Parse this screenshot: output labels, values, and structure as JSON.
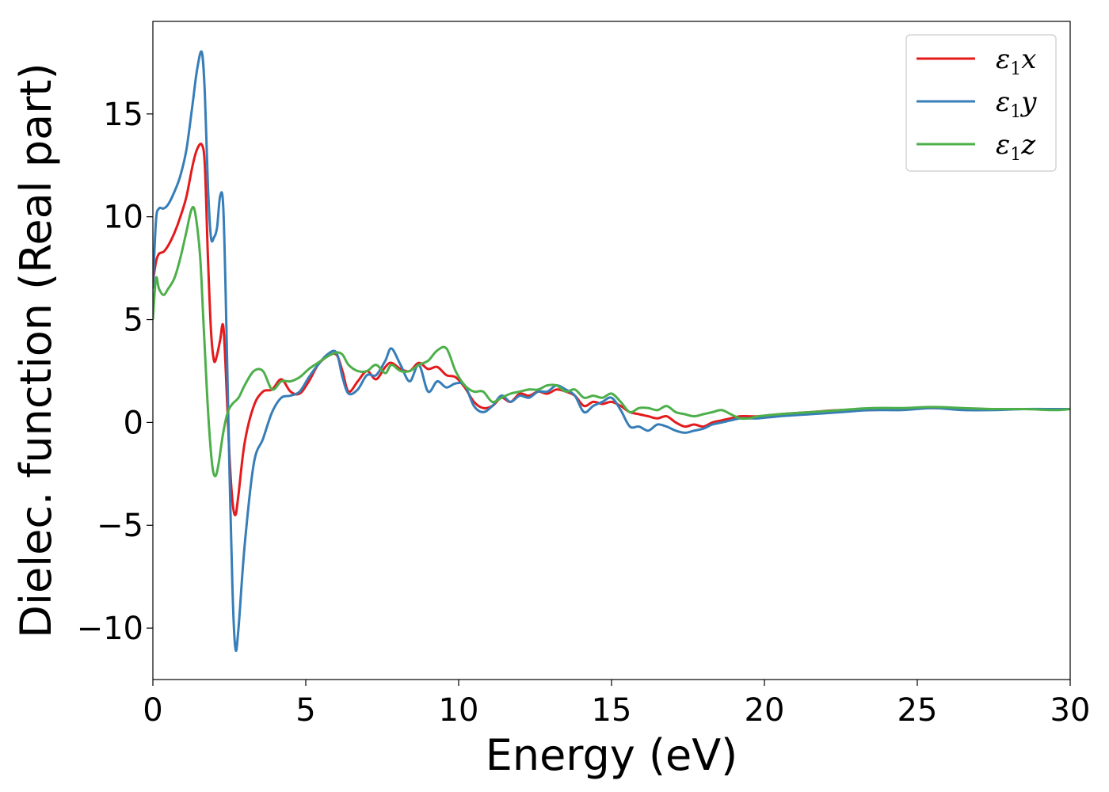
{
  "chart_data": {
    "type": "line",
    "title": "",
    "xlabel": "Energy (eV)",
    "ylabel": "Dielec. function (Real part)",
    "xlim": [
      0,
      30
    ],
    "ylim": [
      -12.5,
      19.5
    ],
    "xticks": [
      0,
      5,
      10,
      15,
      20,
      25,
      30
    ],
    "yticks": [
      -10,
      -5,
      0,
      5,
      10,
      15
    ],
    "xtick_labels": [
      "0",
      "5",
      "10",
      "15",
      "20",
      "25",
      "30"
    ],
    "ytick_labels": [
      "−10",
      "−5",
      "0",
      "5",
      "10",
      "15"
    ],
    "grid": false,
    "legend_position": "top-right",
    "series": [
      {
        "name": "ε1x",
        "label_main": "ε",
        "label_sub": "1",
        "label_var": "x",
        "color": "#e41a1c",
        "x": [
          0,
          0.1,
          0.2,
          0.35,
          0.5,
          0.7,
          0.9,
          1.1,
          1.3,
          1.45,
          1.6,
          1.7,
          1.8,
          1.9,
          2.0,
          2.1,
          2.2,
          2.3,
          2.4,
          2.5,
          2.6,
          2.7,
          2.8,
          3.0,
          3.3,
          3.6,
          3.9,
          4.2,
          4.5,
          4.8,
          5.1,
          5.4,
          5.7,
          6.0,
          6.2,
          6.4,
          6.7,
          7.0,
          7.3,
          7.6,
          7.8,
          8.1,
          8.4,
          8.7,
          9.0,
          9.3,
          9.6,
          9.9,
          10.2,
          10.5,
          10.8,
          11.1,
          11.4,
          11.7,
          12.0,
          12.3,
          12.6,
          12.9,
          13.2,
          13.5,
          13.8,
          14.1,
          14.4,
          14.7,
          15.0,
          15.3,
          15.6,
          15.9,
          16.2,
          16.5,
          16.8,
          17.1,
          17.4,
          17.7,
          18.0,
          18.3,
          18.6,
          18.9,
          19.2,
          19.5,
          19.8,
          20.5,
          21.5,
          22.5,
          23.5,
          24.5,
          25.5,
          26.5,
          27.5,
          28.5,
          29.5,
          30
        ],
        "y": [
          6.8,
          7.8,
          8.2,
          8.3,
          8.6,
          9.2,
          10.0,
          11.0,
          12.5,
          13.3,
          13.5,
          12.5,
          8.0,
          4.5,
          3.0,
          3.3,
          4.0,
          4.7,
          2.0,
          -1.5,
          -3.8,
          -4.5,
          -3.5,
          -1.0,
          0.8,
          1.5,
          1.6,
          2.1,
          1.5,
          1.4,
          2.0,
          2.8,
          3.2,
          3.3,
          2.5,
          1.5,
          2.0,
          2.5,
          2.1,
          2.7,
          2.9,
          2.6,
          2.5,
          2.9,
          2.6,
          2.7,
          2.3,
          2.2,
          1.7,
          1.0,
          0.7,
          0.8,
          1.2,
          1.0,
          1.4,
          1.3,
          1.5,
          1.4,
          1.6,
          1.5,
          1.3,
          0.8,
          1.0,
          0.9,
          1.0,
          0.8,
          0.5,
          0.4,
          0.3,
          0.2,
          0.3,
          0.0,
          -0.2,
          -0.1,
          -0.2,
          0.0,
          0.1,
          0.2,
          0.3,
          0.3,
          0.3,
          0.4,
          0.5,
          0.6,
          0.6,
          0.65,
          0.7,
          0.65,
          0.65,
          0.65,
          0.65,
          0.65
        ]
      },
      {
        "name": "ε1y",
        "label_main": "ε",
        "label_sub": "1",
        "label_var": "y",
        "color": "#377eb8",
        "x": [
          0,
          0.1,
          0.2,
          0.35,
          0.5,
          0.7,
          0.9,
          1.1,
          1.3,
          1.45,
          1.6,
          1.7,
          1.8,
          1.9,
          2.0,
          2.1,
          2.2,
          2.3,
          2.4,
          2.5,
          2.6,
          2.7,
          2.8,
          3.0,
          3.3,
          3.6,
          3.9,
          4.2,
          4.5,
          4.8,
          5.1,
          5.4,
          5.7,
          6.0,
          6.2,
          6.4,
          6.7,
          7.0,
          7.3,
          7.6,
          7.8,
          8.1,
          8.4,
          8.7,
          9.0,
          9.3,
          9.6,
          9.9,
          10.2,
          10.5,
          10.8,
          11.1,
          11.4,
          11.7,
          12.0,
          12.3,
          12.6,
          12.9,
          13.2,
          13.5,
          13.8,
          14.1,
          14.4,
          14.7,
          15.0,
          15.3,
          15.6,
          15.9,
          16.2,
          16.5,
          16.8,
          17.1,
          17.4,
          17.7,
          18.0,
          18.3,
          18.6,
          18.9,
          19.2,
          19.5,
          19.8,
          20.5,
          21.5,
          22.5,
          23.5,
          24.5,
          25.5,
          26.5,
          27.5,
          28.5,
          29.5,
          30
        ],
        "y": [
          6.5,
          9.8,
          10.4,
          10.4,
          10.6,
          11.2,
          12.0,
          13.3,
          15.5,
          17.2,
          18.0,
          16.0,
          11.5,
          9.0,
          9.0,
          9.5,
          11.0,
          10.5,
          5.0,
          -2.0,
          -8.0,
          -11.0,
          -10.0,
          -6.0,
          -2.0,
          -0.8,
          0.5,
          1.2,
          1.3,
          1.5,
          2.2,
          2.8,
          3.3,
          3.4,
          2.2,
          1.4,
          1.6,
          2.3,
          2.3,
          3.0,
          3.6,
          2.8,
          2.0,
          2.8,
          1.5,
          2.0,
          1.7,
          1.9,
          1.8,
          0.8,
          0.5,
          0.8,
          1.3,
          1.0,
          1.3,
          1.2,
          1.5,
          1.5,
          1.8,
          1.6,
          1.3,
          0.5,
          0.8,
          1.0,
          1.2,
          0.6,
          -0.2,
          -0.2,
          -0.4,
          -0.1,
          -0.2,
          -0.4,
          -0.5,
          -0.4,
          -0.3,
          -0.1,
          0.0,
          0.1,
          0.2,
          0.2,
          0.2,
          0.3,
          0.4,
          0.5,
          0.6,
          0.6,
          0.7,
          0.6,
          0.6,
          0.65,
          0.65,
          0.65
        ]
      },
      {
        "name": "ε1z",
        "label_main": "ε",
        "label_sub": "1",
        "label_var": "z",
        "color": "#4daf4a",
        "x": [
          0,
          0.1,
          0.2,
          0.35,
          0.5,
          0.7,
          0.9,
          1.1,
          1.25,
          1.35,
          1.45,
          1.55,
          1.65,
          1.75,
          1.85,
          1.95,
          2.05,
          2.15,
          2.3,
          2.45,
          2.6,
          2.8,
          3.0,
          3.3,
          3.6,
          3.9,
          4.2,
          4.5,
          4.8,
          5.1,
          5.4,
          5.7,
          6.0,
          6.2,
          6.4,
          6.7,
          7.0,
          7.3,
          7.6,
          7.8,
          8.1,
          8.4,
          8.7,
          9.0,
          9.3,
          9.6,
          9.9,
          10.2,
          10.5,
          10.8,
          11.1,
          11.4,
          11.7,
          12.0,
          12.3,
          12.6,
          12.9,
          13.2,
          13.5,
          13.8,
          14.1,
          14.4,
          14.7,
          15.0,
          15.3,
          15.6,
          15.9,
          16.2,
          16.5,
          16.8,
          17.1,
          17.4,
          17.7,
          18.0,
          18.3,
          18.6,
          18.9,
          19.2,
          19.5,
          19.8,
          20.5,
          21.5,
          22.5,
          23.5,
          24.5,
          25.5,
          26.5,
          27.5,
          28.5,
          29.5,
          30
        ],
        "y": [
          5.0,
          7.0,
          6.5,
          6.2,
          6.5,
          7.0,
          8.0,
          9.3,
          10.3,
          10.4,
          9.5,
          8.0,
          5.0,
          2.0,
          -0.5,
          -2.2,
          -2.6,
          -2.0,
          -0.5,
          0.5,
          0.9,
          1.2,
          1.8,
          2.5,
          2.5,
          1.6,
          2.0,
          2.0,
          2.2,
          2.6,
          2.9,
          3.2,
          3.4,
          3.3,
          2.8,
          2.5,
          2.5,
          2.8,
          2.4,
          2.8,
          2.5,
          2.5,
          2.8,
          3.0,
          3.5,
          3.6,
          2.5,
          1.8,
          1.5,
          1.5,
          1.0,
          1.2,
          1.4,
          1.5,
          1.6,
          1.6,
          1.8,
          1.8,
          1.5,
          1.6,
          1.2,
          1.3,
          1.2,
          1.4,
          1.0,
          0.5,
          0.7,
          0.7,
          0.6,
          0.8,
          0.5,
          0.4,
          0.3,
          0.4,
          0.5,
          0.6,
          0.4,
          0.2,
          0.2,
          0.3,
          0.4,
          0.5,
          0.6,
          0.7,
          0.7,
          0.75,
          0.7,
          0.65,
          0.65,
          0.6,
          0.65
        ]
      }
    ]
  }
}
